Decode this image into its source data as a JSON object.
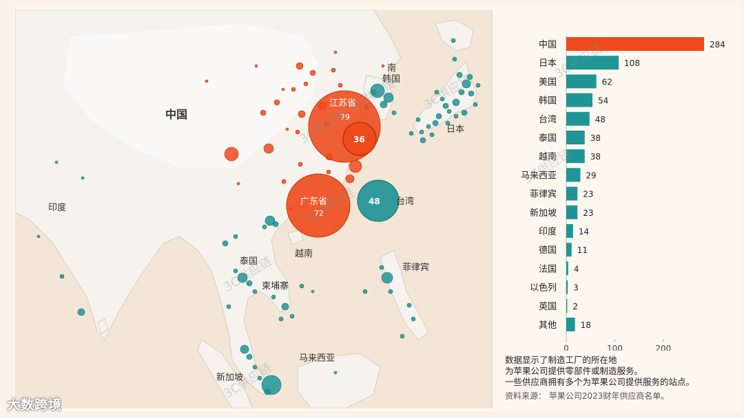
{
  "map": {
    "labels": {
      "china": "中国",
      "india": "印度",
      "south_korea_1": "南",
      "south_korea_2": "韩国",
      "japan": "日本",
      "jiangsu": "江苏省",
      "jiangsu_value": "79",
      "guangdong": "广东省",
      "guangdong_value": "72",
      "value_36": "36",
      "taiwan_value": "48",
      "taiwan": "台湾",
      "vietnam": "越南",
      "thailand": "泰国",
      "cambodia": "柬埔寨",
      "philippines": "菲律宾",
      "malaysia": "马来西亚",
      "singapore": "新加坡"
    },
    "colors": {
      "china": "#ee4a1c",
      "other": "#1f9596",
      "land": "#f5f1ec",
      "sea": "#f4e7d8"
    }
  },
  "chart_data": {
    "type": "bar",
    "orientation": "horizontal",
    "categories": [
      "中国",
      "日本",
      "美国",
      "韩国",
      "台湾",
      "泰国",
      "越南",
      "马来西亚",
      "菲律宾",
      "新加坡",
      "印度",
      "德国",
      "法国",
      "以色列",
      "英国",
      "其他"
    ],
    "values": [
      284,
      108,
      62,
      54,
      48,
      38,
      38,
      29,
      23,
      23,
      14,
      11,
      4,
      3,
      2,
      18
    ],
    "xlim": [
      0,
      284
    ],
    "xticks": [
      0,
      100,
      200
    ],
    "colors": {
      "highlight": "#ee4a1c",
      "default": "#1f9596"
    },
    "title": "",
    "xlabel": "",
    "ylabel": ""
  },
  "notes": {
    "line1": "数据显示了制造工厂的所在地",
    "line2": "为苹果公司提供零部件或制造服务。",
    "line3": "一些供应商拥有多个为苹果公司提供服务的站点。",
    "source": "资料来源：  苹果公司2023财年供应商名单。"
  },
  "brand": "大数跨境",
  "watermark": "3C供应链"
}
